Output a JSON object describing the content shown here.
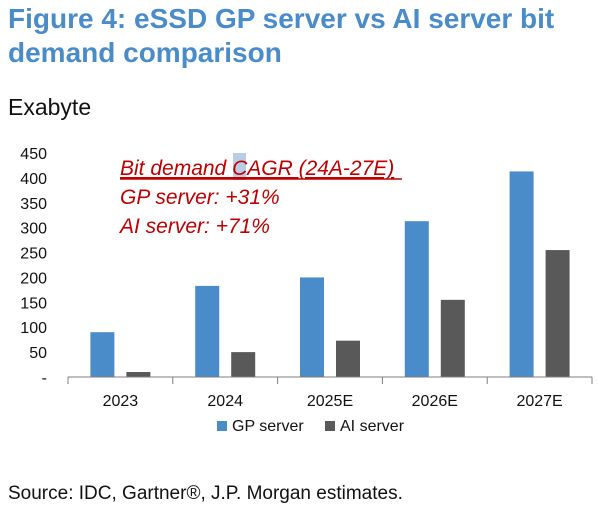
{
  "figure": {
    "title": "Figure 4: eSSD GP server vs AI server bit demand comparison",
    "unit": "Exabyte",
    "source": "Source: IDC, Gartner®, J.P. Morgan estimates."
  },
  "annotation": {
    "heading": "Bit demand CAGR (24A-27E)",
    "lines": [
      "GP server: +31%",
      "AI server: +71%"
    ],
    "color": "#c00000"
  },
  "chart_data": {
    "type": "bar",
    "categories": [
      "2023",
      "2024",
      "2025E",
      "2026E",
      "2027E"
    ],
    "series": [
      {
        "name": "GP server",
        "color": "#4a8cc9",
        "values": [
          90,
          183,
          200,
          313,
          413
        ]
      },
      {
        "name": "AI server",
        "color": "#595959",
        "values": [
          10,
          50,
          73,
          155,
          255
        ]
      }
    ],
    "y_ticks": [
      "-",
      "50",
      "100",
      "150",
      "200",
      "250",
      "300",
      "350",
      "400",
      "450"
    ],
    "ylim": [
      0,
      450
    ],
    "grid": false,
    "legend_position": "bottom"
  }
}
